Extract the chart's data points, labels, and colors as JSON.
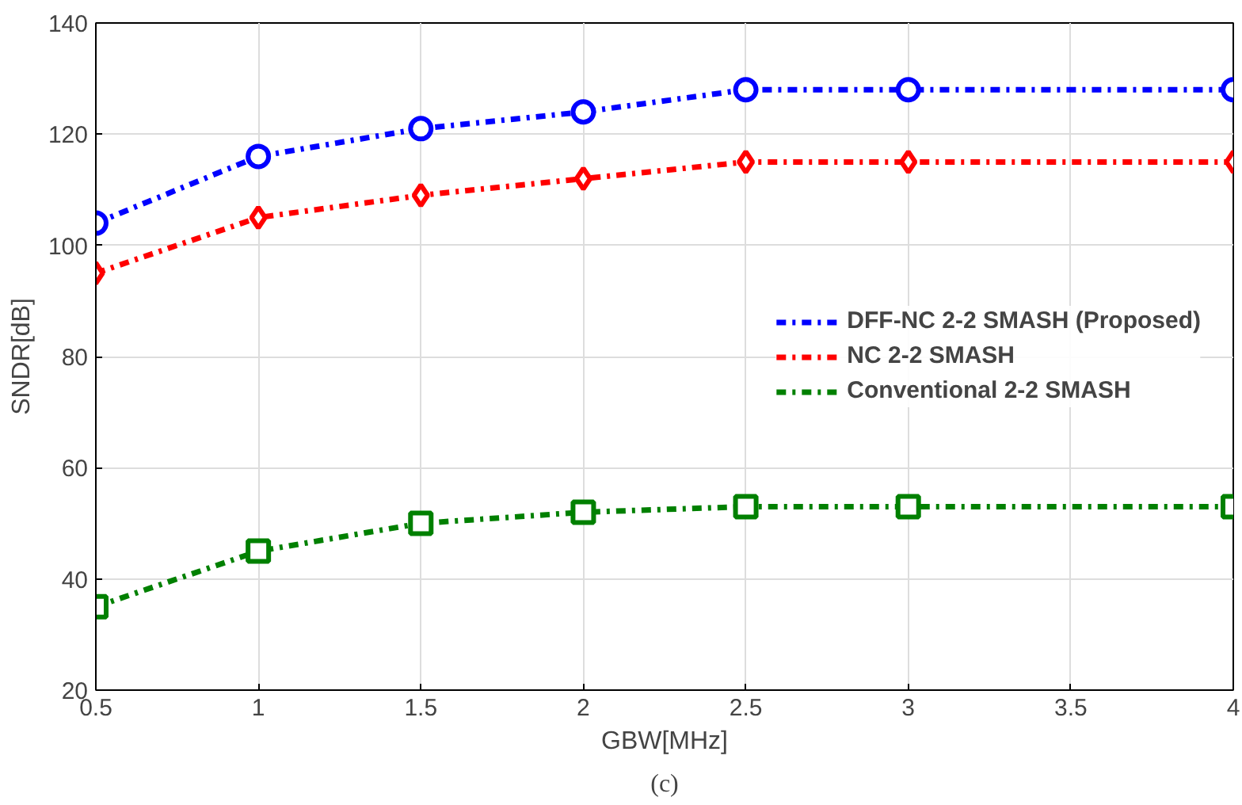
{
  "chart_data": {
    "type": "line",
    "xlabel": "GBW[MHz]",
    "ylabel": "SNDR[dB]",
    "x": [
      0.5,
      1,
      1.5,
      2,
      2.5,
      3,
      3.5,
      4
    ],
    "series": [
      {
        "name": "DFF-NC 2-2 SMASH (Proposed)",
        "color": "#0000ff",
        "marker": "circle",
        "values": [
          104,
          116,
          121,
          124,
          128,
          128,
          null,
          128
        ]
      },
      {
        "name": "NC 2-2 SMASH",
        "color": "#ff0000",
        "marker": "diamond",
        "values": [
          95,
          105,
          109,
          112,
          115,
          115,
          null,
          115
        ]
      },
      {
        "name": "Conventional 2-2 SMASH",
        "color": "#008000",
        "marker": "square",
        "values": [
          35,
          45,
          50,
          52,
          53,
          53,
          null,
          53
        ]
      }
    ],
    "xlim": [
      0.5,
      4
    ],
    "xticks": [
      0.5,
      1,
      1.5,
      2,
      2.5,
      3,
      3.5,
      4
    ],
    "ylim": [
      20,
      140
    ],
    "yticks": [
      20,
      40,
      60,
      80,
      100,
      120,
      140
    ],
    "grid": true,
    "legend": "right",
    "line_style": "dashdot",
    "annotations": [
      "(c)"
    ]
  }
}
